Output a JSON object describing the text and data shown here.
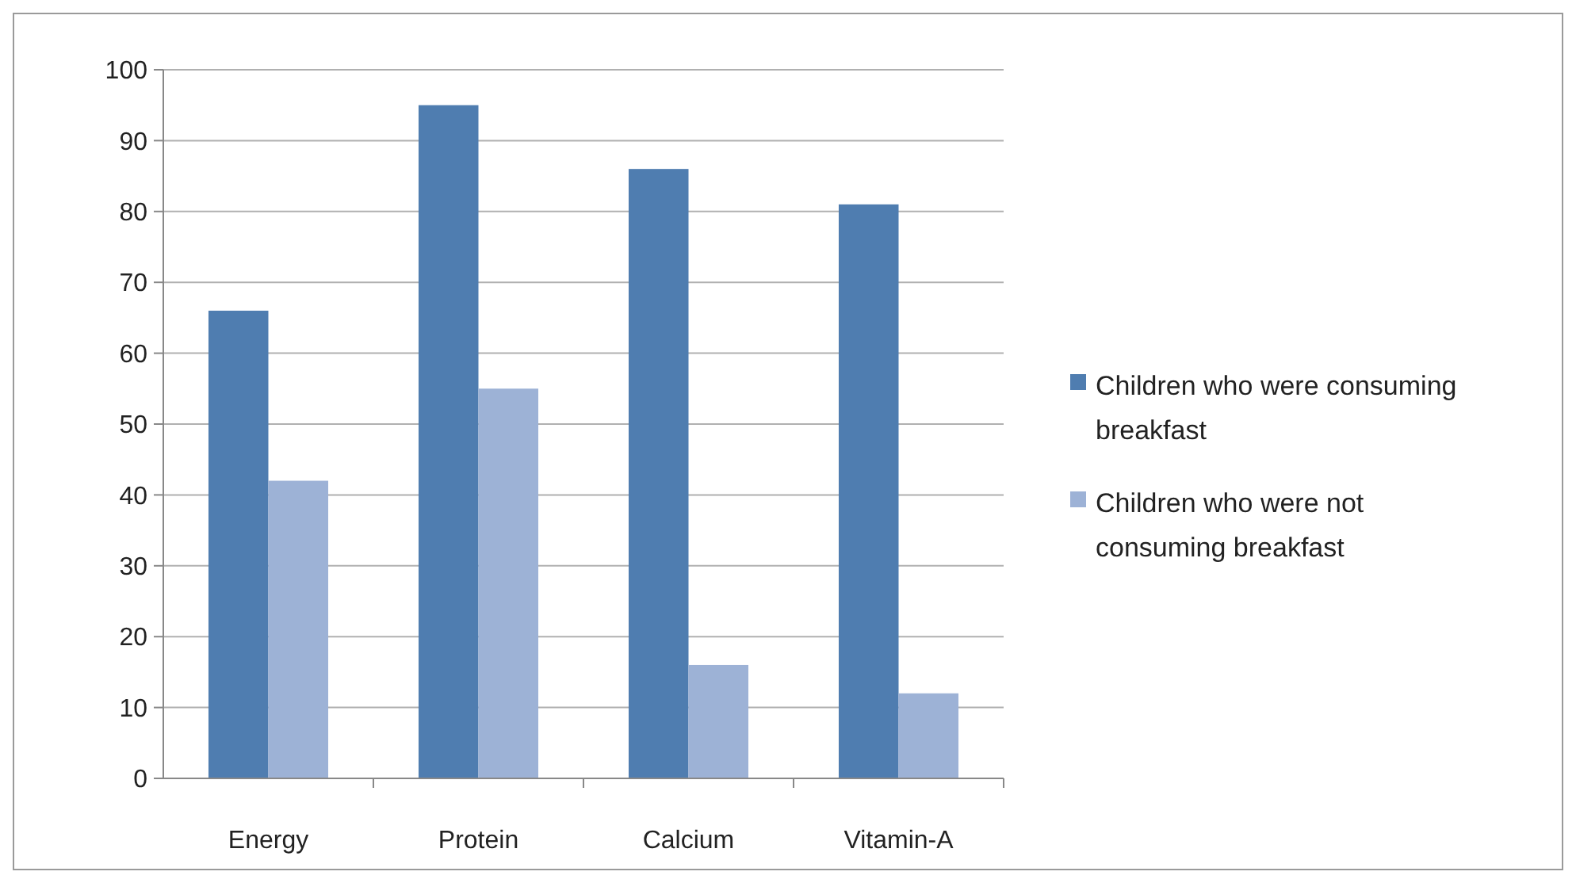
{
  "chart_data": {
    "type": "bar",
    "categories": [
      "Energy",
      "Protein",
      "Calcium",
      "Vitamin-A"
    ],
    "series": [
      {
        "name": "Children who were consuming breakfast",
        "color": "#4f7db0",
        "values": [
          66,
          95,
          86,
          81
        ]
      },
      {
        "name": "Children who were not consuming breakfast",
        "color": "#9db2d6",
        "values": [
          42,
          55,
          16,
          12
        ]
      }
    ],
    "ylim": [
      0,
      100
    ],
    "yticks": [
      0,
      10,
      20,
      30,
      40,
      50,
      60,
      70,
      80,
      90,
      100
    ],
    "grid": "y",
    "legend": "right"
  }
}
